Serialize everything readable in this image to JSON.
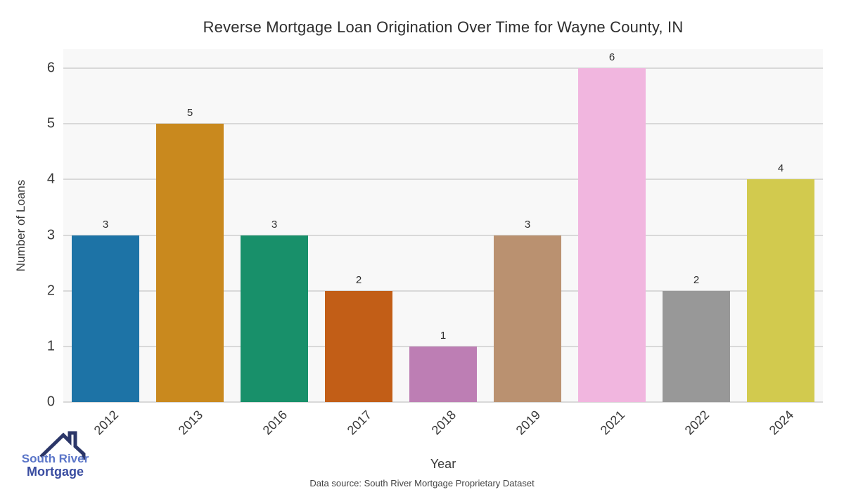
{
  "title": "Reverse Mortgage Loan Origination Over Time for Wayne County, IN",
  "footer": "Data source: South River Mortgage Proprietary Dataset",
  "logo": {
    "line1": "South River",
    "line2": "Mortgage",
    "roof_color": "#2b3668",
    "line1_color": "#5a75c8",
    "line2_color": "#3a4da1"
  },
  "chart_data": {
    "type": "bar",
    "title": "Reverse Mortgage Loan Origination Over Time for Wayne County, IN",
    "xlabel": "Year",
    "ylabel": "Number of Loans",
    "categories": [
      "2012",
      "2013",
      "2016",
      "2017",
      "2018",
      "2019",
      "2021",
      "2022",
      "2024"
    ],
    "values": [
      3,
      5,
      3,
      2,
      1,
      3,
      6,
      2,
      4
    ],
    "bar_colors": [
      "#1d73a6",
      "#c9891e",
      "#18906a",
      "#c25e17",
      "#bd7eb4",
      "#ba9170",
      "#f1b6df",
      "#989898",
      "#d2ca4e"
    ],
    "yticks": [
      0,
      1,
      2,
      3,
      4,
      5,
      6
    ],
    "ylim": [
      0,
      6.34
    ],
    "grid": true,
    "legend": "none",
    "plot_bg": "#f8f8f8",
    "grid_color": "#d9d9d9",
    "tick_label_rotation_deg": 45
  }
}
